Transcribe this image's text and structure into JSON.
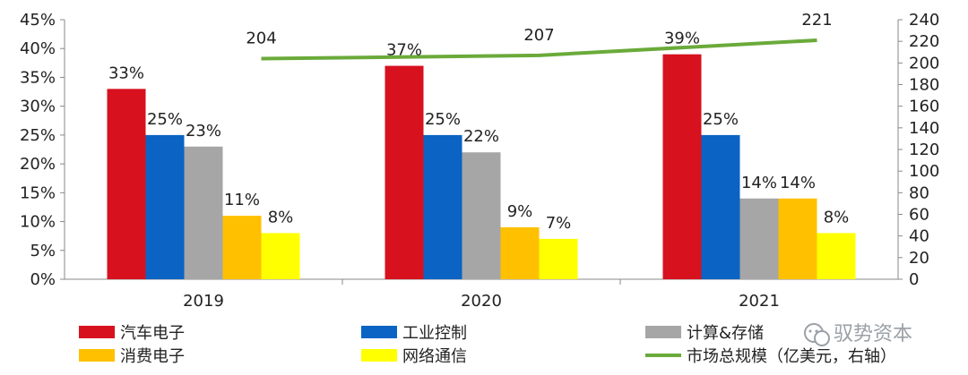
{
  "chart_data": {
    "type": "bar+line",
    "categories": [
      "2019",
      "2020",
      "2021"
    ],
    "series": [
      {
        "name": "汽车电子",
        "color": "#d7111e",
        "values": [
          33,
          37,
          39
        ],
        "labels": [
          "33%",
          "37%",
          "39%"
        ]
      },
      {
        "name": "工业控制",
        "color": "#0b63c4",
        "values": [
          25,
          25,
          25
        ],
        "labels": [
          "25%",
          "25%",
          "25%"
        ]
      },
      {
        "name": "计算&存储",
        "color": "#a6a6a6",
        "values": [
          23,
          22,
          14
        ],
        "labels": [
          "23%",
          "22%",
          "14%"
        ]
      },
      {
        "name": "消费电子",
        "color": "#ffc000",
        "values": [
          11,
          9,
          14
        ],
        "labels": [
          "11%",
          "9%",
          "14%"
        ]
      },
      {
        "name": "网络通信",
        "color": "#ffff00",
        "values": [
          8,
          7,
          8
        ],
        "labels": [
          "8%",
          "7%",
          "8%"
        ]
      }
    ],
    "line": {
      "name": "市场总规模（亿美元，右轴）",
      "color": "#6aaa3a",
      "values": [
        204,
        207,
        221
      ],
      "labels": [
        "204",
        "207",
        "221"
      ],
      "axis": "right"
    },
    "y_left": {
      "min": 0,
      "max": 45,
      "step": 5,
      "ticks": [
        "0%",
        "5%",
        "10%",
        "15%",
        "20%",
        "25%",
        "30%",
        "35%",
        "40%",
        "45%"
      ]
    },
    "y_right": {
      "min": 0,
      "max": 240,
      "step": 20,
      "ticks": [
        "0",
        "20",
        "40",
        "60",
        "80",
        "100",
        "120",
        "140",
        "160",
        "180",
        "200",
        "220",
        "240"
      ]
    },
    "legend_position": "bottom",
    "grid": false
  },
  "watermark": {
    "text": "驭势资本",
    "icon": "wechat-icon"
  }
}
